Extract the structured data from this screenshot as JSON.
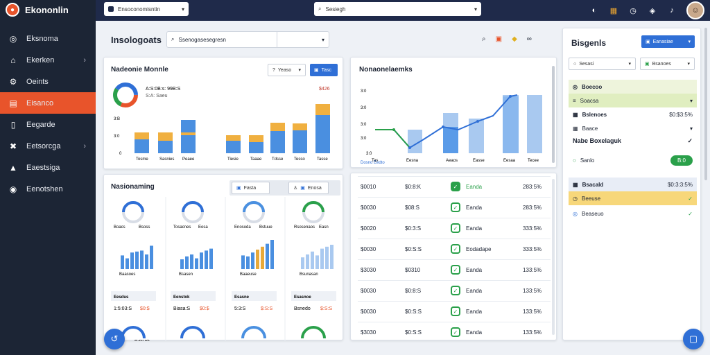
{
  "app": {
    "name": "Ekononlin"
  },
  "topbar": {
    "select_left": "Ensoconomisntin",
    "search_placeholder": "Sesiegh",
    "icons": [
      "shield-icon",
      "folder-icon",
      "clock-icon",
      "compass-icon",
      "bell-icon"
    ]
  },
  "sidebar": {
    "items": [
      {
        "label": "Eksnoma",
        "icon": "globe-icon",
        "active": false
      },
      {
        "label": "Ekerken",
        "icon": "home-icon",
        "active": false,
        "chevron": true
      },
      {
        "label": "Oeints",
        "icon": "wrench-icon",
        "active": false
      },
      {
        "label": "Eisanco",
        "icon": "chart-icon",
        "active": true
      },
      {
        "label": "Eegarde",
        "icon": "book-icon",
        "active": false
      },
      {
        "label": "Eetsorcga",
        "icon": "cross-icon",
        "active": false,
        "chevron": true
      },
      {
        "label": "Eaestsiga",
        "icon": "house-icon",
        "active": false
      },
      {
        "label": "Eenotshen",
        "icon": "settings-icon",
        "active": false
      }
    ]
  },
  "header": {
    "title": "Insologoats",
    "search_placeholder": "Ssenogasesegresn"
  },
  "card1": {
    "title": "Nadeonie Monnle",
    "filter_label": "Yeaso",
    "action_label": "Tasc",
    "donut_label": "A:S:0B:s: 99B:S",
    "donut_sub": "S:A: Saeu",
    "donut_value": "$426",
    "yticks": [
      "3:B",
      "3:0",
      "0"
    ],
    "categories": [
      "Tosme",
      "Sasnies",
      "Peaee",
      "Tiesie",
      "Taaae",
      "Tdsse",
      "Tesso",
      "Tasse"
    ]
  },
  "card2": {
    "title": "Nonaonelaemks",
    "yticks": [
      "3:0",
      "3:0",
      "3:0",
      "3:0",
      "3:0"
    ],
    "categories": [
      "Tas",
      "Eesna",
      "Aeaos",
      "Easse",
      "Eesaa",
      "Tecee"
    ],
    "legend": "Dosno Eedto"
  },
  "card3": {
    "title": "Nasionaming",
    "btn1": "Fasta",
    "btn2": "Enosa",
    "cols": [
      {
        "label": "Boacs",
        "label2": "Bsoss",
        "b1": "Baasoes",
        "b2": "1:5:03:S",
        "b3": "$0:$",
        "b4": "Eesdus"
      },
      {
        "label": "Tosacnes",
        "label2": "Eosa",
        "b1": "Bsasen",
        "b2": "Biasa:S",
        "b3": "$0:$",
        "b4": "Eenstok"
      },
      {
        "label": "Enosoda",
        "label2": "Bstuue",
        "b1": "Baaeuse",
        "b2": "5:3:S",
        "b3": "$:S:S",
        "b4": "Esasne"
      },
      {
        "label": "Rsosenaos",
        "label2": "Easn",
        "b1": "Bsunasan",
        "b2": "Bsnedo",
        "b3": "$:S:S",
        "b4": "Esasnoe"
      }
    ],
    "footer": "B:BHO"
  },
  "table": {
    "rows": [
      {
        "a": "$0010",
        "b": "$0:8:K",
        "c": "Eanda",
        "d": "283:5%",
        "filled": true
      },
      {
        "a": "$0030",
        "b": "$08:S",
        "c": "Eanda",
        "d": "283:5%",
        "filled": false
      },
      {
        "a": "$0020",
        "b": "$0:3:S",
        "c": "Eanda",
        "d": "333:5%",
        "filled": false
      },
      {
        "a": "$0030",
        "b": "$0:S:S",
        "c": "Eodadape",
        "d": "333:5%",
        "filled": false
      },
      {
        "a": "$3030",
        "b": "$0310",
        "c": "Eanda",
        "d": "133:5%",
        "filled": false
      },
      {
        "a": "$0030",
        "b": "$0:8:S",
        "c": "Eanda",
        "d": "133:5%",
        "filled": false
      },
      {
        "a": "$0030",
        "b": "$0:S:S",
        "c": "Eanda",
        "d": "133:5%",
        "filled": false
      },
      {
        "a": "$3030",
        "b": "$0:S:S",
        "c": "Eanda",
        "d": "133:5%",
        "filled": false
      }
    ]
  },
  "right_panel": {
    "title": "Bisgenls",
    "button": "Eanasiae",
    "select1": "Sesasi",
    "select2": "Bsanoes",
    "section1": "Boecoo",
    "row1": "Soacsa",
    "row2_label": "Bslenoes",
    "row2_value": "$0:$3:5%",
    "row3": "Baace",
    "section2": "Nabe Boxelaguk",
    "row4": "Sanlo",
    "row4_btn": "B:0",
    "section3": "Bsacald",
    "section3_value": "$0:3:3:5%",
    "row5": "Beeuse",
    "row6": "Beaseuo"
  },
  "colors": {
    "orange": "#e8542b",
    "blue": "#2f6fd6",
    "navy": "#1f2a4a",
    "green": "#2aa04a"
  }
}
